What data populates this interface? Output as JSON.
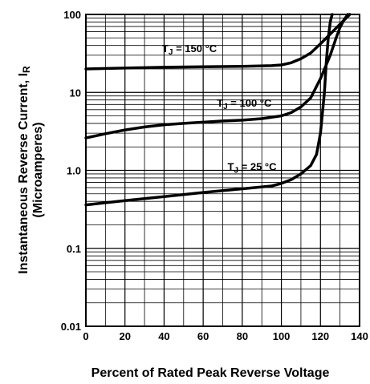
{
  "chart_data": {
    "type": "line",
    "xlabel": "Percent of Rated Peak Reverse Voltage",
    "ylabel": "Instantaneous Reverse Current, I",
    "ylabel_subscript": "R",
    "ylabel_unit": "(Microamperes)",
    "x_scale": "linear",
    "y_scale": "log",
    "xlim": [
      0,
      140
    ],
    "ylim": [
      0.01,
      100
    ],
    "grid": true,
    "x_ticks": [
      "0",
      "20",
      "40",
      "60",
      "80",
      "100",
      "120",
      "140"
    ],
    "y_ticks": [
      "0.01",
      "0.1",
      "1.0",
      "10",
      "100"
    ],
    "series": [
      {
        "name": "TJ = 150 °C",
        "label_main": "T",
        "label_sub": "J",
        "label_rest": " = 150 °C",
        "x": [
          0,
          20,
          40,
          60,
          80,
          95,
          100,
          105,
          110,
          115,
          120,
          125,
          130,
          135
        ],
        "y": [
          20,
          20.5,
          21,
          21.3,
          21.6,
          22,
          22.5,
          24,
          27,
          32,
          42,
          56,
          75,
          100
        ]
      },
      {
        "name": "TJ = 100 °C",
        "label_main": "T",
        "label_sub": "J",
        "label_rest": " = 100 °C",
        "x": [
          0,
          10,
          20,
          30,
          40,
          50,
          60,
          70,
          80,
          90,
          100,
          105,
          110,
          115,
          120,
          125,
          128,
          130,
          132,
          134
        ],
        "y": [
          2.6,
          2.95,
          3.3,
          3.6,
          3.85,
          4.0,
          4.15,
          4.3,
          4.4,
          4.6,
          5.0,
          5.5,
          6.5,
          8.5,
          15,
          30,
          50,
          68,
          85,
          100
        ]
      },
      {
        "name": "TJ = 25 °C",
        "label_main": "T",
        "label_sub": "J",
        "label_rest": " = 25 °C",
        "x": [
          0,
          20,
          40,
          60,
          80,
          95,
          100,
          105,
          110,
          115,
          118,
          120,
          122,
          123,
          124,
          125,
          125.5,
          126
        ],
        "y": [
          0.36,
          0.41,
          0.46,
          0.52,
          0.58,
          0.63,
          0.68,
          0.76,
          0.9,
          1.15,
          1.6,
          3,
          10,
          25,
          50,
          80,
          90,
          100
        ]
      }
    ]
  }
}
